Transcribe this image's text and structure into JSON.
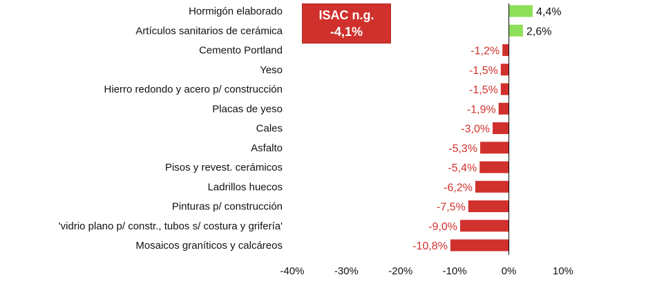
{
  "chart_data": {
    "type": "bar",
    "orientation": "horizontal",
    "categories": [
      "Hormigón elaborado",
      "Artículos sanitarios de cerámica",
      "Cemento Portland",
      "Yeso",
      "Hierro redondo y acero p/ construcción",
      "Placas de yeso",
      "Cales",
      "Asfalto",
      "Pisos y revest. cerámicos",
      "Ladrillos huecos",
      "Pinturas p/ construcción",
      "'vidrio plano p/ constr., tubos s/ costura y grifería'",
      "Mosaicos graníticos y calcáreos"
    ],
    "values": [
      4.4,
      2.6,
      -1.2,
      -1.5,
      -1.5,
      -1.9,
      -3.0,
      -5.3,
      -5.4,
      -6.2,
      -7.5,
      -9.0,
      -10.8
    ],
    "value_labels": [
      "4,4%",
      "2,6%",
      "-1,2%",
      "-1,5%",
      "-1,5%",
      "-1,9%",
      "-3,0%",
      "-5,3%",
      "-5,4%",
      "-6,2%",
      "-7,5%",
      "-9,0%",
      "-10,8%"
    ],
    "xlim": [
      -40,
      10
    ],
    "xticks": [
      -40,
      -30,
      -20,
      -10,
      0,
      10
    ],
    "xtick_labels": [
      "-40%",
      "-30%",
      "-20%",
      "-10%",
      "0%",
      "10%"
    ],
    "grid": false,
    "colors": {
      "positive": "#8ee05a",
      "negative": "#d0312d",
      "axis": "#000000"
    }
  },
  "badge": {
    "line1": "ISAC n.g.",
    "line2": "-4,1%"
  }
}
